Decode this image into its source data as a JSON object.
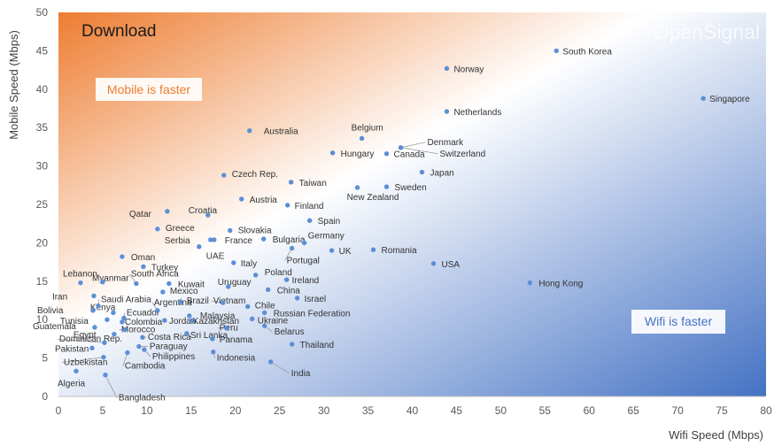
{
  "chart_data": {
    "type": "scatter",
    "title": "Download",
    "watermark": "OpenSignal",
    "xlabel": "Wifi Speed (Mbps)",
    "ylabel": "Mobile Speed (Mbps)",
    "xlim": [
      0,
      80
    ],
    "ylim": [
      0,
      50
    ],
    "xticks": [
      0,
      5,
      10,
      15,
      20,
      25,
      30,
      35,
      40,
      45,
      50,
      55,
      60,
      65,
      70,
      75,
      80
    ],
    "yticks": [
      0,
      5,
      10,
      15,
      20,
      25,
      30,
      35,
      40,
      45,
      50
    ],
    "grid": false,
    "annotations": [
      {
        "text": "Mobile is faster",
        "color": "#ed7d31"
      },
      {
        "text": "Wifi is faster",
        "color": "#4472c4"
      }
    ],
    "marker_color": "#5b8fd6",
    "background_gradient": [
      "#ed7d31",
      "#ffffff",
      "#4472c4"
    ],
    "points": [
      {
        "name": "South Korea",
        "x": 56.3,
        "y": 45.0
      },
      {
        "name": "Singapore",
        "x": 72.9,
        "y": 38.8
      },
      {
        "name": "Norway",
        "x": 43.9,
        "y": 42.7
      },
      {
        "name": "Netherlands",
        "x": 43.9,
        "y": 37.1
      },
      {
        "name": "Belgium",
        "x": 34.3,
        "y": 33.6
      },
      {
        "name": "Australia",
        "x": 21.6,
        "y": 34.6
      },
      {
        "name": "Denmark",
        "x": 38.7,
        "y": 32.4
      },
      {
        "name": "Switzerland",
        "x": 38.7,
        "y": 32.4
      },
      {
        "name": "Hungary",
        "x": 31.0,
        "y": 31.7
      },
      {
        "name": "Canada",
        "x": 37.1,
        "y": 31.6
      },
      {
        "name": "Japan",
        "x": 41.1,
        "y": 29.2
      },
      {
        "name": "Czech Rep.",
        "x": 18.7,
        "y": 28.8
      },
      {
        "name": "Taiwan",
        "x": 26.3,
        "y": 27.9
      },
      {
        "name": "Sweden",
        "x": 37.1,
        "y": 27.3
      },
      {
        "name": "New Zealand",
        "x": 33.8,
        "y": 27.2
      },
      {
        "name": "Austria",
        "x": 20.7,
        "y": 25.7
      },
      {
        "name": "Finland",
        "x": 25.9,
        "y": 24.9
      },
      {
        "name": "Croatia",
        "x": 16.9,
        "y": 23.6
      },
      {
        "name": "Qatar",
        "x": 12.3,
        "y": 24.1
      },
      {
        "name": "Spain",
        "x": 28.4,
        "y": 22.9
      },
      {
        "name": "Greece",
        "x": 11.2,
        "y": 21.8
      },
      {
        "name": "Slovakia",
        "x": 19.4,
        "y": 21.6
      },
      {
        "name": "Serbia",
        "x": 17.2,
        "y": 20.4
      },
      {
        "name": "France",
        "x": 17.6,
        "y": 20.4
      },
      {
        "name": "Bulgaria",
        "x": 23.2,
        "y": 20.5
      },
      {
        "name": "Germany",
        "x": 27.8,
        "y": 20.0
      },
      {
        "name": "UAE",
        "x": 15.9,
        "y": 19.5
      },
      {
        "name": "Portugal",
        "x": 26.4,
        "y": 19.3
      },
      {
        "name": "UK",
        "x": 30.9,
        "y": 19.0
      },
      {
        "name": "Romania",
        "x": 35.6,
        "y": 19.1
      },
      {
        "name": "Oman",
        "x": 7.2,
        "y": 18.2
      },
      {
        "name": "Italy",
        "x": 19.8,
        "y": 17.4
      },
      {
        "name": "USA",
        "x": 42.4,
        "y": 17.3
      },
      {
        "name": "Turkey",
        "x": 9.6,
        "y": 16.9
      },
      {
        "name": "Poland",
        "x": 22.3,
        "y": 15.8
      },
      {
        "name": "Lebanon",
        "x": 2.5,
        "y": 14.8
      },
      {
        "name": "Myanmar",
        "x": 5.0,
        "y": 14.9
      },
      {
        "name": "South Africa",
        "x": 8.8,
        "y": 14.7
      },
      {
        "name": "Ireland",
        "x": 25.8,
        "y": 15.2
      },
      {
        "name": "Kuwait",
        "x": 12.5,
        "y": 14.7
      },
      {
        "name": "Uruguay",
        "x": 19.2,
        "y": 14.3
      },
      {
        "name": "Hong Kong",
        "x": 53.3,
        "y": 14.8
      },
      {
        "name": "China",
        "x": 23.7,
        "y": 13.9
      },
      {
        "name": "Iran",
        "x": 4.0,
        "y": 13.1
      },
      {
        "name": "Mexico",
        "x": 11.8,
        "y": 13.6
      },
      {
        "name": "Israel",
        "x": 27.0,
        "y": 12.8
      },
      {
        "name": "Saudi Arabia",
        "x": 4.5,
        "y": 11.8
      },
      {
        "name": "Brazil",
        "x": 13.8,
        "y": 12.3
      },
      {
        "name": "Vietnam",
        "x": 18.6,
        "y": 12.2
      },
      {
        "name": "Bolivia",
        "x": 3.9,
        "y": 11.2
      },
      {
        "name": "Argentina",
        "x": 11.2,
        "y": 11.2
      },
      {
        "name": "Chile",
        "x": 21.4,
        "y": 11.7
      },
      {
        "name": "Kenya",
        "x": 6.2,
        "y": 10.9
      },
      {
        "name": "Russian Federation",
        "x": 23.3,
        "y": 10.9
      },
      {
        "name": "Tunisia",
        "x": 5.5,
        "y": 10.0
      },
      {
        "name": "Ecuador",
        "x": 7.4,
        "y": 10.2
      },
      {
        "name": "Malaysia",
        "x": 14.8,
        "y": 10.5
      },
      {
        "name": "Colombia",
        "x": 7.2,
        "y": 9.7
      },
      {
        "name": "Ukraine",
        "x": 21.9,
        "y": 10.1
      },
      {
        "name": "Kazakhstan",
        "x": 15.1,
        "y": 9.9
      },
      {
        "name": "Jordan",
        "x": 12.0,
        "y": 9.9
      },
      {
        "name": "Guatemala",
        "x": 4.1,
        "y": 9.0
      },
      {
        "name": "Peru",
        "x": 19.0,
        "y": 8.9
      },
      {
        "name": "Egypt",
        "x": 6.3,
        "y": 8.1
      },
      {
        "name": "Morocco",
        "x": 7.5,
        "y": 8.7
      },
      {
        "name": "Sri Lanka",
        "x": 14.5,
        "y": 8.2
      },
      {
        "name": "Belarus",
        "x": 23.3,
        "y": 9.2
      },
      {
        "name": "Costa Rica",
        "x": 9.5,
        "y": 7.7
      },
      {
        "name": "Panama",
        "x": 17.4,
        "y": 7.5
      },
      {
        "name": "Dominican Rep.",
        "x": 5.2,
        "y": 7.0
      },
      {
        "name": "Pakistan",
        "x": 3.8,
        "y": 6.3
      },
      {
        "name": "Paraguay",
        "x": 9.1,
        "y": 6.5
      },
      {
        "name": "Thailand",
        "x": 26.4,
        "y": 6.8
      },
      {
        "name": "Indonesia",
        "x": 17.5,
        "y": 5.8
      },
      {
        "name": "Philippines",
        "x": 9.7,
        "y": 6.1
      },
      {
        "name": "Uzbekistan",
        "x": 5.1,
        "y": 5.1
      },
      {
        "name": "Cambodia",
        "x": 7.8,
        "y": 5.7
      },
      {
        "name": "India",
        "x": 24.0,
        "y": 4.5
      },
      {
        "name": "Algeria",
        "x": 2.0,
        "y": 3.3
      },
      {
        "name": "Bangladesh",
        "x": 5.3,
        "y": 2.8
      }
    ]
  }
}
